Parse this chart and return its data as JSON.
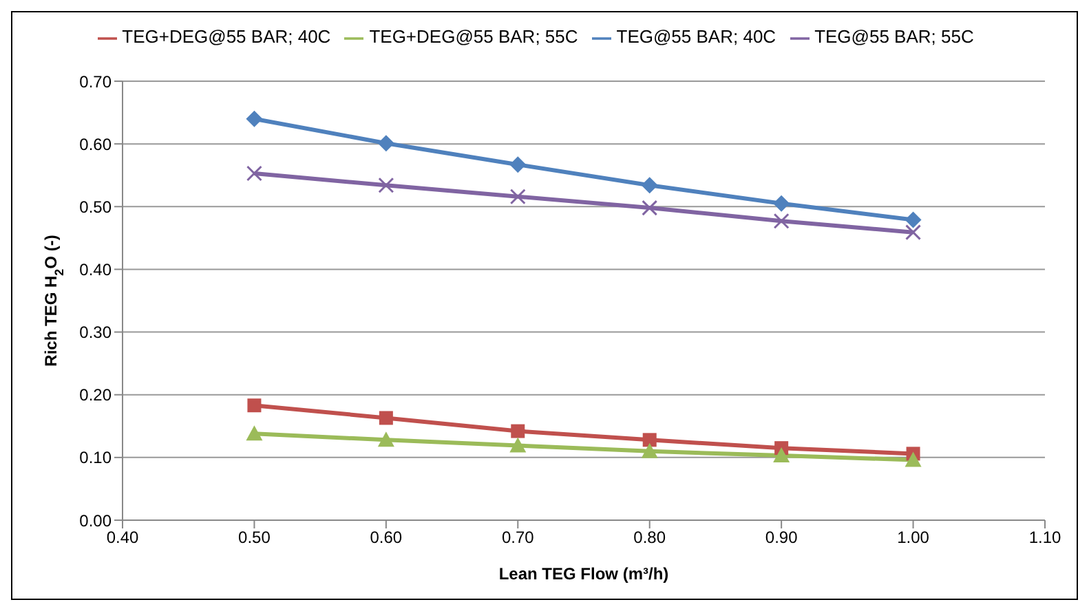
{
  "chart_data": {
    "type": "line",
    "xlabel": "Lean TEG Flow (m³/h)",
    "ylabel": "Rich TEG H$_{2}$O (-)",
    "x": [
      0.5,
      0.6,
      0.7,
      0.8,
      0.9,
      1.0
    ],
    "series": [
      {
        "name": "TEG+DEG@55 BAR; 40C",
        "color": "#c0504d",
        "marker": "square",
        "values": [
          0.183,
          0.163,
          0.142,
          0.128,
          0.115,
          0.106
        ]
      },
      {
        "name": "TEG+DEG@55 BAR; 55C",
        "color": "#9bbb59",
        "marker": "triangle",
        "values": [
          0.138,
          0.128,
          0.119,
          0.11,
          0.103,
          0.096
        ]
      },
      {
        "name": "TEG@55 BAR; 40C",
        "color": "#4f81bd",
        "marker": "diamond",
        "values": [
          0.64,
          0.601,
          0.567,
          0.534,
          0.505,
          0.479
        ]
      },
      {
        "name": "TEG@55 BAR; 55C",
        "color": "#8064a2",
        "marker": "cross",
        "values": [
          0.553,
          0.534,
          0.516,
          0.498,
          0.477,
          0.459
        ]
      }
    ],
    "xlim": [
      0.4,
      1.1
    ],
    "xticks": [
      {
        "value": 0.4,
        "label": "0.40"
      },
      {
        "value": 0.5,
        "label": "0.50"
      },
      {
        "value": 0.6,
        "label": "0.60"
      },
      {
        "value": 0.7,
        "label": "0.70"
      },
      {
        "value": 0.8,
        "label": "0.80"
      },
      {
        "value": 0.9,
        "label": "0.90"
      },
      {
        "value": 1.0,
        "label": "1.00"
      },
      {
        "value": 1.1,
        "label": "1.10"
      }
    ],
    "ylim": [
      0,
      0.7
    ],
    "yticks": [
      {
        "value": 0,
        "label": "0.00"
      },
      {
        "value": 0.1,
        "label": "0.10"
      },
      {
        "value": 0.2,
        "label": "0.20"
      },
      {
        "value": 0.3,
        "label": "0.30"
      },
      {
        "value": 0.4,
        "label": "0.40"
      },
      {
        "value": 0.5,
        "label": "0.50"
      },
      {
        "value": 0.6,
        "label": "0.60"
      },
      {
        "value": 0.7,
        "label": "0.70"
      }
    ],
    "grid": "y",
    "legend": "top",
    "line_style": "solid"
  }
}
